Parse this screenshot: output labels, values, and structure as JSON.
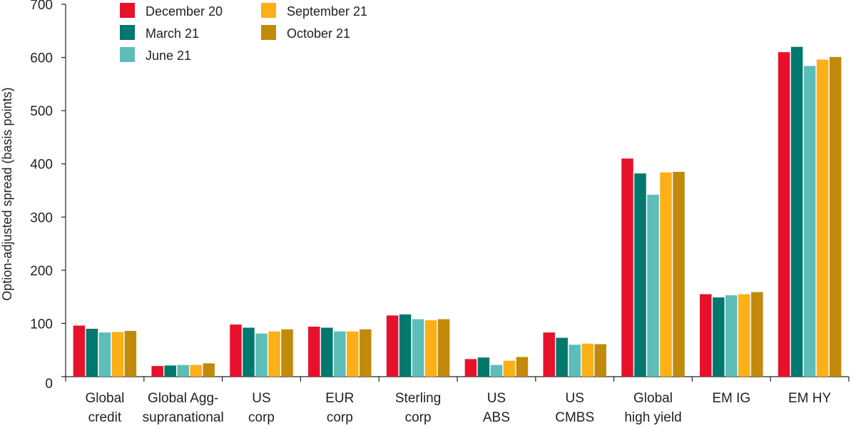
{
  "chart_data": {
    "type": "bar",
    "title": "",
    "xlabel": "",
    "ylabel": "Option-adjusted spread (basis points)",
    "ylim": [
      0,
      700
    ],
    "yticks": [
      "0",
      "100",
      "200",
      "300",
      "400",
      "500",
      "600",
      "700"
    ],
    "grid": false,
    "legend_position": "top-left",
    "categories": [
      [
        "Global",
        "credit"
      ],
      [
        "Global Agg-",
        "supranational"
      ],
      [
        "US",
        "corp"
      ],
      [
        "EUR",
        "corp"
      ],
      [
        "Sterling",
        "corp"
      ],
      [
        "US",
        "ABS"
      ],
      [
        "US",
        "CMBS"
      ],
      [
        "Global",
        "high yield"
      ],
      [
        "EM IG"
      ],
      [
        "EM HY"
      ]
    ],
    "series": [
      {
        "name": "December 20",
        "color": "#e8112d",
        "values": [
          96,
          20,
          98,
          94,
          115,
          33,
          83,
          410,
          155,
          610
        ]
      },
      {
        "name": "March 21",
        "color": "#00786e",
        "values": [
          90,
          21,
          92,
          92,
          117,
          36,
          73,
          382,
          149,
          620
        ]
      },
      {
        "name": "June 21",
        "color": "#5cbdb9",
        "values": [
          83,
          22,
          81,
          85,
          108,
          22,
          60,
          342,
          153,
          584
        ]
      },
      {
        "name": "September 21",
        "color": "#fcaf17",
        "values": [
          84,
          22,
          85,
          85,
          106,
          30,
          62,
          384,
          155,
          596
        ]
      },
      {
        "name": "October 21",
        "color": "#c28a0b",
        "values": [
          86,
          25,
          89,
          89,
          108,
          37,
          61,
          385,
          159,
          601
        ]
      }
    ]
  }
}
